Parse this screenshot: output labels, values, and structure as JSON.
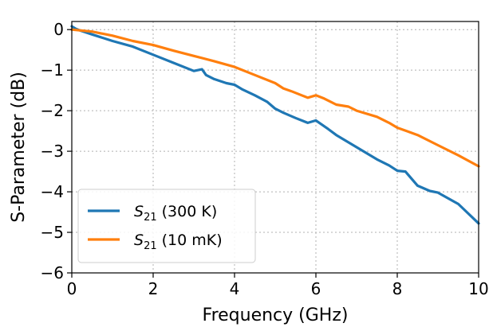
{
  "chart_data": {
    "type": "line",
    "title": "",
    "xlabel": "Frequency (GHz)",
    "ylabel": "S-Parameter (dB)",
    "xlim": [
      0,
      10
    ],
    "ylim": [
      -6,
      0.2
    ],
    "xticks": [
      "0",
      "2",
      "4",
      "6",
      "8",
      "10"
    ],
    "yticks": [
      "0",
      "−1",
      "−2",
      "−3",
      "−4",
      "−5",
      "−6"
    ],
    "grid": true,
    "legend_position": "lower-left",
    "series": [
      {
        "name": "S21 (300 K)",
        "color": "#1f77b4",
        "x": [
          0,
          0.1,
          0.2,
          0.5,
          1.0,
          1.5,
          2.0,
          2.5,
          3.0,
          3.2,
          3.3,
          3.5,
          3.8,
          4.0,
          4.2,
          4.5,
          4.8,
          5.0,
          5.2,
          5.5,
          5.8,
          6.0,
          6.3,
          6.5,
          7.0,
          7.5,
          7.8,
          8.0,
          8.2,
          8.5,
          8.8,
          9.0,
          9.5,
          10.0
        ],
        "values": [
          0.08,
          0.02,
          -0.02,
          -0.12,
          -0.28,
          -0.42,
          -0.62,
          -0.82,
          -1.02,
          -0.98,
          -1.12,
          -1.22,
          -1.32,
          -1.36,
          -1.48,
          -1.62,
          -1.78,
          -1.95,
          -2.05,
          -2.18,
          -2.3,
          -2.24,
          -2.45,
          -2.6,
          -2.9,
          -3.2,
          -3.35,
          -3.48,
          -3.5,
          -3.85,
          -3.98,
          -4.02,
          -4.3,
          -4.78
        ]
      },
      {
        "name": "S21 (10 mK)",
        "color": "#ff7f0e",
        "x": [
          0,
          0.5,
          1.0,
          1.5,
          2.0,
          2.5,
          3.0,
          3.5,
          4.0,
          4.5,
          5.0,
          5.2,
          5.4,
          5.8,
          6.0,
          6.2,
          6.5,
          6.8,
          7.0,
          7.5,
          7.8,
          8.0,
          8.5,
          9.0,
          9.5,
          10.0
        ],
        "values": [
          0.0,
          -0.05,
          -0.15,
          -0.28,
          -0.38,
          -0.52,
          -0.65,
          -0.78,
          -0.92,
          -1.12,
          -1.32,
          -1.45,
          -1.52,
          -1.68,
          -1.62,
          -1.7,
          -1.85,
          -1.9,
          -2.0,
          -2.15,
          -2.3,
          -2.42,
          -2.6,
          -2.85,
          -3.1,
          -3.37
        ]
      }
    ]
  }
}
